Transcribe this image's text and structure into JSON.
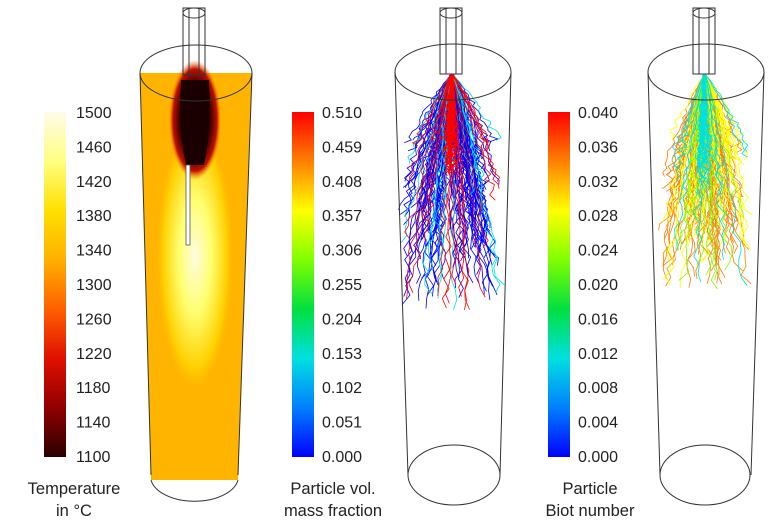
{
  "panels": [
    {
      "caption": [
        "Temperature",
        "in °C"
      ],
      "colorbar_ticks": [
        "1500",
        "1460",
        "1420",
        "1380",
        "1340",
        "1300",
        "1260",
        "1220",
        "1180",
        "1140",
        "1100"
      ],
      "colormap": [
        "#fffbe8",
        "#ffff80",
        "#ffe000",
        "#ffb000",
        "#ff6000",
        "#e01000",
        "#900000",
        "#2a0000"
      ]
    },
    {
      "caption": [
        "Particle vol.",
        "mass fraction"
      ],
      "colorbar_ticks": [
        "0.510",
        "0.459",
        "0.408",
        "0.357",
        "0.306",
        "0.255",
        "0.204",
        "0.153",
        "0.102",
        "0.051",
        "0.000"
      ],
      "colormap": [
        "#ff0000",
        "#ff8000",
        "#ffff00",
        "#80ff00",
        "#00e040",
        "#00e0e0",
        "#0080ff",
        "#0000ff"
      ]
    },
    {
      "caption": [
        "Particle",
        "Biot number"
      ],
      "colorbar_ticks": [
        "0.040",
        "0.036",
        "0.032",
        "0.028",
        "0.024",
        "0.020",
        "0.016",
        "0.012",
        "0.008",
        "0.004",
        "0.000"
      ],
      "colormap": [
        "#ff0000",
        "#ff8000",
        "#ffff00",
        "#80ff00",
        "#00e040",
        "#00e0e0",
        "#0080ff",
        "#0000ff"
      ]
    }
  ]
}
